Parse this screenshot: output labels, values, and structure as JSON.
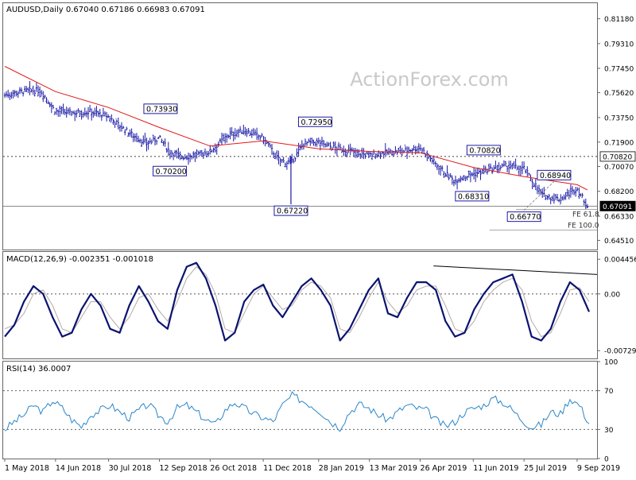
{
  "colors": {
    "price": "#1a1aa6",
    "ma": "#e01919",
    "macd": "#0a1470",
    "signal": "#b8a8a8",
    "rsi": "#2b86c8",
    "grid": "#9a9a9a",
    "label_box": "#1a1aa6",
    "current_price": "#000000"
  },
  "watermark": "ActionForex.com",
  "chart_data": [
    {
      "type": "ohlc",
      "title": "AUDUSD,Daily  0.67040 0.67186 0.66983 0.67091",
      "ylim": [
        0.6382,
        0.8235
      ],
      "y_ticks": [
        "0.81180",
        "0.79310",
        "0.77450",
        "0.75620",
        "0.73750",
        "0.71900",
        "0.70070",
        "0.68200",
        "0.66330",
        "0.64510"
      ],
      "current_price_label": "0.67091",
      "horizontal_levels": [
        {
          "value": 0.7082,
          "label": "0.70820",
          "style": "dotted"
        },
        {
          "value": 0.6709,
          "label": "",
          "style": "solid"
        }
      ],
      "annotations": [
        {
          "text": "0.73930",
          "x": "13 Sep 2018",
          "y": 0.7393
        },
        {
          "text": "0.70200",
          "x": "21 Sep 2018",
          "y": 0.702
        },
        {
          "text": "0.72950",
          "x": "25 Jan 2019",
          "y": 0.7295
        },
        {
          "text": "0.67220",
          "x": "04 Jan 2019",
          "y": 0.6722
        },
        {
          "text": "0.70820",
          "x": "20 Jun 2019",
          "y": 0.7082
        },
        {
          "text": "0.68310",
          "x": "10 Jun 2019",
          "y": 0.6831
        },
        {
          "text": "0.68940",
          "x": "20 Aug 2019",
          "y": 0.6894
        },
        {
          "text": "0.66770",
          "x": "25 Jul 2019",
          "y": 0.6677
        }
      ],
      "fib_labels": [
        "FE 61.8",
        "FE 100.0"
      ],
      "x_labels": [
        "1 May 2018",
        "14 Jun 2018",
        "30 Jul 2018",
        "12 Sep 2018",
        "26 Oct 2018",
        "11 Dec 2018",
        "28 Jan 2019",
        "13 Mar 2019",
        "26 Apr 2019",
        "11 Jun 2019",
        "25 Jul 2019",
        "9 Sep 2019"
      ],
      "series": [
        {
          "name": "",
          "kind": "close_approx",
          "x": [
            "1 May 2018",
            "15 May 2018",
            "1 Jun 2018",
            "14 Jun 2018",
            "1 Jul 2018",
            "15 Jul 2018",
            "30 Jul 2018",
            "15 Aug 2018",
            "1 Sep 2018",
            "12 Sep 2018",
            "21 Sep 2018",
            "1 Oct 2018",
            "15 Oct 2018",
            "26 Oct 2018",
            "10 Nov 2018",
            "25 Nov 2018",
            "11 Dec 2018",
            "25 Dec 2018",
            "4 Jan 2019",
            "15 Jan 2019",
            "28 Jan 2019",
            "10 Feb 2019",
            "25 Feb 2019",
            "13 Mar 2019",
            "25 Mar 2019",
            "10 Apr 2019",
            "26 Apr 2019",
            "10 May 2019",
            "25 May 2019",
            "11 Jun 2019",
            "25 Jun 2019",
            "10 Jul 2019",
            "25 Jul 2019",
            "10 Aug 2019",
            "25 Aug 2019",
            "9 Sep 2019",
            "18 Sep 2019"
          ],
          "values": [
            0.7545,
            0.757,
            0.758,
            0.742,
            0.741,
            0.742,
            0.738,
            0.727,
            0.718,
            0.722,
            0.712,
            0.708,
            0.709,
            0.712,
            0.724,
            0.728,
            0.722,
            0.705,
            0.703,
            0.718,
            0.719,
            0.715,
            0.712,
            0.709,
            0.711,
            0.712,
            0.715,
            0.702,
            0.69,
            0.695,
            0.698,
            0.701,
            0.699,
            0.679,
            0.676,
            0.684,
            0.6709
          ]
        },
        {
          "name": "",
          "kind": "moving_average",
          "x": [
            "1 May 2018",
            "14 Jun 2018",
            "30 Jul 2018",
            "12 Sep 2018",
            "26 Oct 2018",
            "11 Dec 2018",
            "28 Jan 2019",
            "13 Mar 2019",
            "26 Apr 2019",
            "11 Jun 2019",
            "25 Jul 2019",
            "9 Sep 2019",
            "18 Sep 2019"
          ],
          "values": [
            0.776,
            0.757,
            0.745,
            0.73,
            0.716,
            0.72,
            0.714,
            0.712,
            0.711,
            0.7,
            0.693,
            0.687,
            0.683
          ]
        }
      ]
    },
    {
      "type": "line",
      "title": "MACD(12,26,9) -0.002351 -0.001018",
      "ylim": [
        -0.0083,
        0.0054
      ],
      "y_ticks": [
        "0.004456",
        "0.00",
        "-0.007298"
      ],
      "series": [
        {
          "name": "",
          "kind": "macd",
          "values": [
            -0.0055,
            -0.004,
            -0.001,
            0.001,
            0.0,
            -0.003,
            -0.0055,
            -0.005,
            -0.002,
            0.0,
            -0.0015,
            -0.0045,
            -0.005,
            -0.0015,
            0.001,
            -0.001,
            -0.0035,
            -0.0045,
            0.0005,
            0.0035,
            0.004,
            0.002,
            -0.0015,
            -0.006,
            -0.005,
            -0.001,
            0.0005,
            0.0012,
            -0.0015,
            -0.003,
            -0.001,
            0.001,
            0.002,
            0.0005,
            -0.0015,
            -0.006,
            -0.0045,
            -0.002,
            0.0005,
            0.002,
            -0.0025,
            -0.003,
            -0.0005,
            0.0015,
            0.0015,
            0.0005,
            -0.0035,
            -0.0055,
            -0.005,
            -0.002,
            0.0,
            0.0015,
            0.002,
            0.0025,
            -0.001,
            -0.0055,
            -0.006,
            -0.0045,
            -0.001,
            0.0015,
            0.0005,
            -0.0023
          ]
        },
        {
          "name": "",
          "kind": "signal",
          "values": [
            -0.0045,
            -0.004,
            -0.0025,
            0.0,
            0.0005,
            -0.0015,
            -0.0045,
            -0.005,
            -0.003,
            -0.001,
            -0.001,
            -0.003,
            -0.0045,
            -0.003,
            -0.0005,
            0.0,
            -0.002,
            -0.0035,
            -0.001,
            0.002,
            0.0035,
            0.0025,
            0.0,
            -0.0045,
            -0.005,
            -0.0025,
            0.0,
            0.001,
            -0.0005,
            -0.002,
            -0.0015,
            0.0005,
            0.0015,
            0.001,
            -0.0005,
            -0.0045,
            -0.005,
            -0.003,
            -0.0005,
            0.0015,
            -0.001,
            -0.0025,
            -0.0015,
            0.0005,
            0.001,
            0.001,
            -0.0015,
            -0.0045,
            -0.005,
            -0.0035,
            -0.001,
            0.0005,
            0.0015,
            0.002,
            0.0005,
            -0.0035,
            -0.0055,
            -0.005,
            -0.0025,
            0.0005,
            0.0008,
            -0.001
          ]
        }
      ],
      "trendline": [
        [
          0.0036,
          0.0025
        ]
      ]
    },
    {
      "type": "line",
      "title": "RSI(14) 36.0007",
      "ylim": [
        0,
        100
      ],
      "y_ticks": [
        "100",
        "70",
        "30",
        "0"
      ],
      "series": [
        {
          "name": "",
          "kind": "rsi",
          "values": [
            30,
            38,
            45,
            55,
            48,
            60,
            52,
            40,
            33,
            45,
            50,
            55,
            48,
            42,
            50,
            56,
            45,
            38,
            52,
            55,
            48,
            40,
            35,
            50,
            58,
            52,
            46,
            42,
            38,
            55,
            65,
            60,
            55,
            48,
            38,
            32,
            48,
            56,
            52,
            45,
            40,
            48,
            55,
            52,
            50,
            40,
            33,
            38,
            48,
            52,
            55,
            62,
            58,
            50,
            40,
            32,
            35,
            48,
            46,
            62,
            55,
            36
          ]
        }
      ]
    }
  ]
}
